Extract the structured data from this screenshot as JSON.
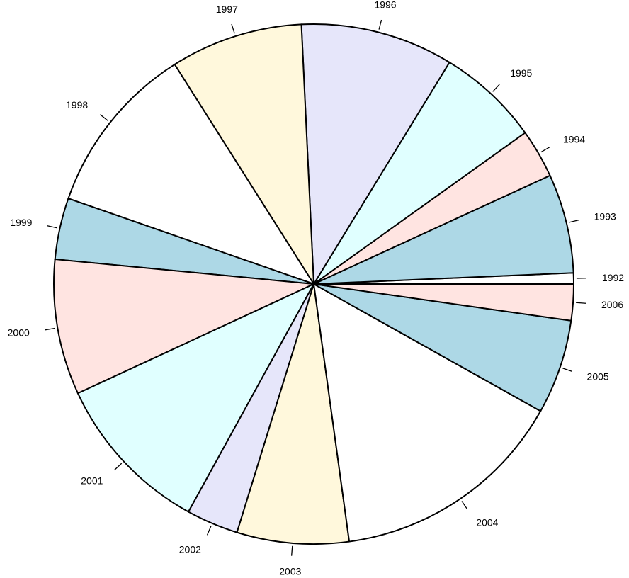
{
  "chart_data": {
    "type": "pie",
    "start_angle_deg": 0,
    "direction": "counterclockwise",
    "border_color": "#000000",
    "slices": [
      {
        "label": "1992",
        "value": 0.7,
        "color": "#FFFFFF"
      },
      {
        "label": "1993",
        "value": 6.3,
        "color": "#ADD8E6"
      },
      {
        "label": "1994",
        "value": 3.1,
        "color": "#FFE4E1"
      },
      {
        "label": "1995",
        "value": 6.5,
        "color": "#E0FFFF"
      },
      {
        "label": "1996",
        "value": 9.7,
        "color": "#E6E6FA"
      },
      {
        "label": "1997",
        "value": 8.4,
        "color": "#FFF8DC"
      },
      {
        "label": "1998",
        "value": 10.9,
        "color": "#FFFFFF"
      },
      {
        "label": "1999",
        "value": 3.9,
        "color": "#ADD8E6"
      },
      {
        "label": "2000",
        "value": 8.6,
        "color": "#FFE4E1"
      },
      {
        "label": "2001",
        "value": 10.3,
        "color": "#E0FFFF"
      },
      {
        "label": "2002",
        "value": 3.3,
        "color": "#E6E6FA"
      },
      {
        "label": "2003",
        "value": 7.1,
        "color": "#FFF8DC"
      },
      {
        "label": "2004",
        "value": 15.0,
        "color": "#FFFFFF"
      },
      {
        "label": "2005",
        "value": 6.0,
        "color": "#ADD8E6"
      },
      {
        "label": "2006",
        "value": 2.3,
        "color": "#FFE4E1"
      }
    ]
  }
}
